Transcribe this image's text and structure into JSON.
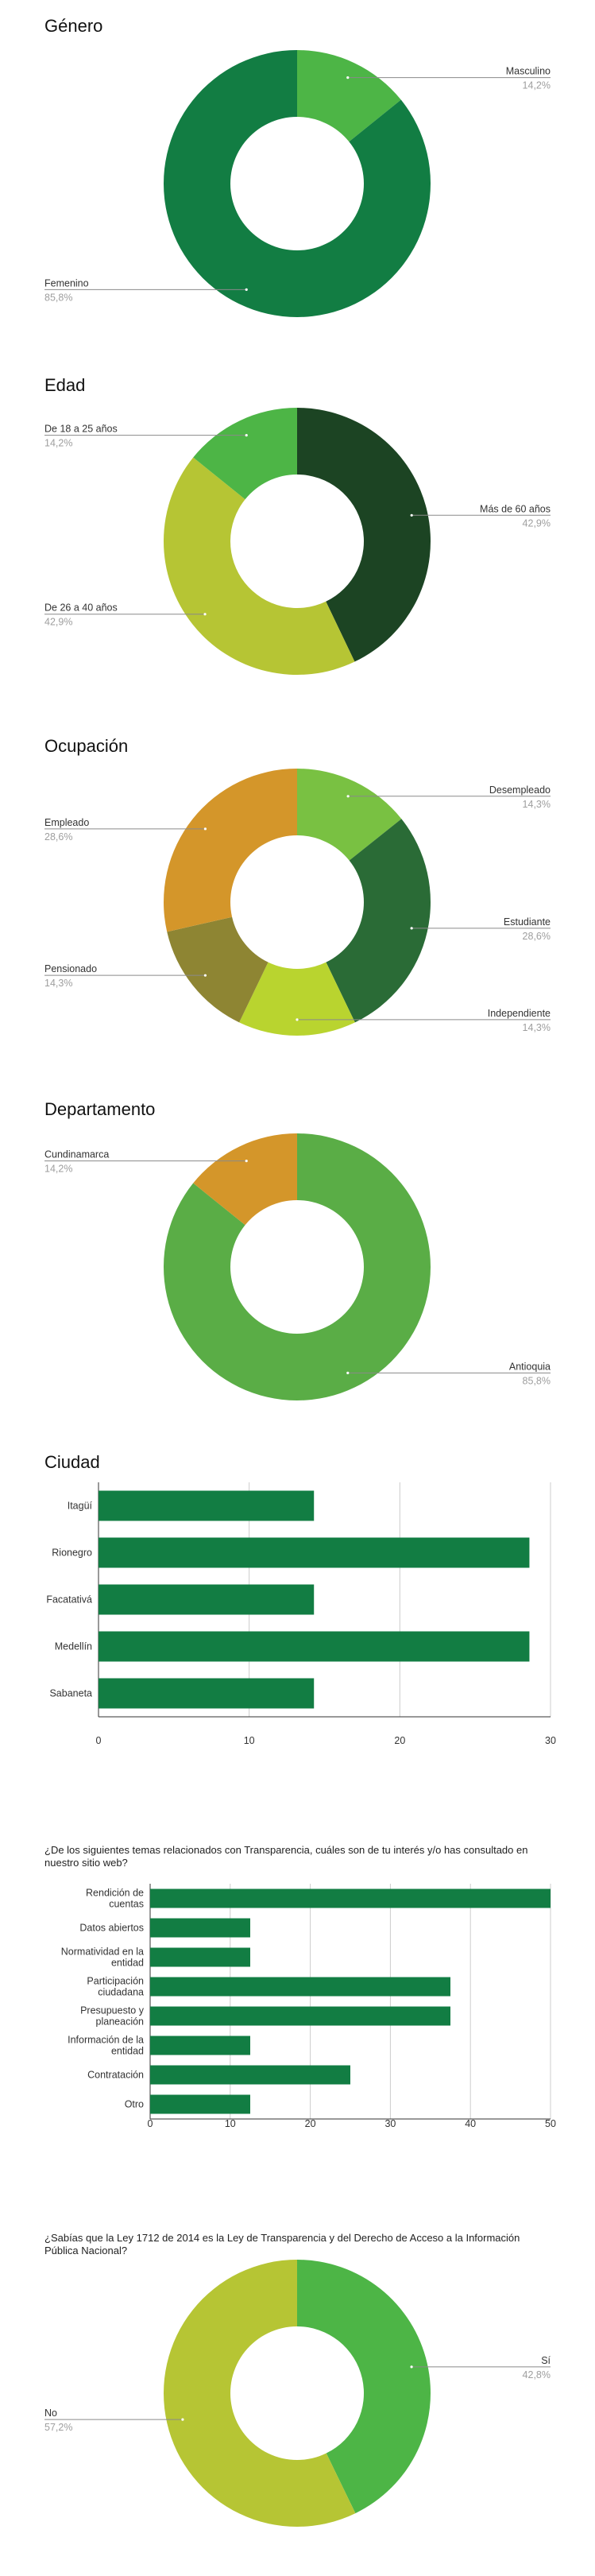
{
  "chart_data": [
    {
      "type": "pie",
      "title": "Género",
      "slices": [
        {
          "label": "Masculino",
          "pct_label": "14,2%",
          "value": 14.2,
          "color": "#4db546"
        },
        {
          "label": "Femenino",
          "pct_label": "85,8%",
          "value": 85.8,
          "color": "#127d43"
        }
      ]
    },
    {
      "type": "pie",
      "title": "Edad",
      "slices": [
        {
          "label": "Más de 60 años",
          "pct_label": "42,9%",
          "value": 42.9,
          "color": "#1c4423"
        },
        {
          "label": "De 26 a 40 años",
          "pct_label": "42,9%",
          "value": 42.9,
          "color": "#b6c534"
        },
        {
          "label": "De 18 a 25 años",
          "pct_label": "14,2%",
          "value": 14.2,
          "color": "#4db546"
        }
      ]
    },
    {
      "type": "pie",
      "title": "Ocupación",
      "slices": [
        {
          "label": "Desempleado",
          "pct_label": "14,3%",
          "value": 14.3,
          "color": "#79c142"
        },
        {
          "label": "Estudiante",
          "pct_label": "28,6%",
          "value": 28.6,
          "color": "#2a6b36"
        },
        {
          "label": "Independiente",
          "pct_label": "14,3%",
          "value": 14.3,
          "color": "#b9d42f"
        },
        {
          "label": "Pensionado",
          "pct_label": "14,3%",
          "value": 14.3,
          "color": "#8e8533"
        },
        {
          "label": "Empleado",
          "pct_label": "28,6%",
          "value": 28.6,
          "color": "#d4962a"
        }
      ]
    },
    {
      "type": "pie",
      "title": "Departamento",
      "slices": [
        {
          "label": "Antioquia",
          "pct_label": "85,8%",
          "value": 85.8,
          "color": "#5aad46"
        },
        {
          "label": "Cundinamarca",
          "pct_label": "14,2%",
          "value": 14.2,
          "color": "#d4962a"
        }
      ]
    },
    {
      "type": "bar",
      "orientation": "horizontal",
      "title": "Ciudad",
      "categories": [
        "Itagüí",
        "Rionegro",
        "Facatativá",
        "Medellín",
        "Sabaneta"
      ],
      "values": [
        14.3,
        28.6,
        14.3,
        28.6,
        14.3
      ],
      "xticks": [
        0,
        10,
        20,
        30
      ],
      "xlim": [
        0,
        30
      ],
      "color": "#127d43"
    },
    {
      "type": "bar",
      "orientation": "horizontal",
      "title": "¿De los siguientes temas relacionados con Transparencia, cuáles son de tu interés y/o has consultado en nuestro sitio web?",
      "categories": [
        [
          "Rendición de",
          "cuentas"
        ],
        [
          "Datos abiertos"
        ],
        [
          "Normatividad en la",
          "entidad"
        ],
        [
          "Participación",
          "ciudadana"
        ],
        [
          "Presupuesto y",
          "planeación"
        ],
        [
          "Información de la",
          "entidad"
        ],
        [
          "Contratación"
        ],
        [
          "Otro"
        ]
      ],
      "values": [
        50,
        12.5,
        12.5,
        37.5,
        37.5,
        12.5,
        25,
        12.5
      ],
      "xticks": [
        0,
        10,
        20,
        30,
        40,
        50
      ],
      "xlim": [
        0,
        50
      ],
      "color": "#127d43"
    },
    {
      "type": "pie",
      "title": "¿Sabías que la Ley 1712 de 2014 es la Ley de Transparencia y del Derecho de Acceso a la Información Pública Nacional?",
      "slices": [
        {
          "label": "Sí",
          "pct_label": "42,8%",
          "value": 42.8,
          "color": "#4db546"
        },
        {
          "label": "No",
          "pct_label": "57,2%",
          "value": 57.2,
          "color": "#b6c534"
        }
      ]
    }
  ]
}
